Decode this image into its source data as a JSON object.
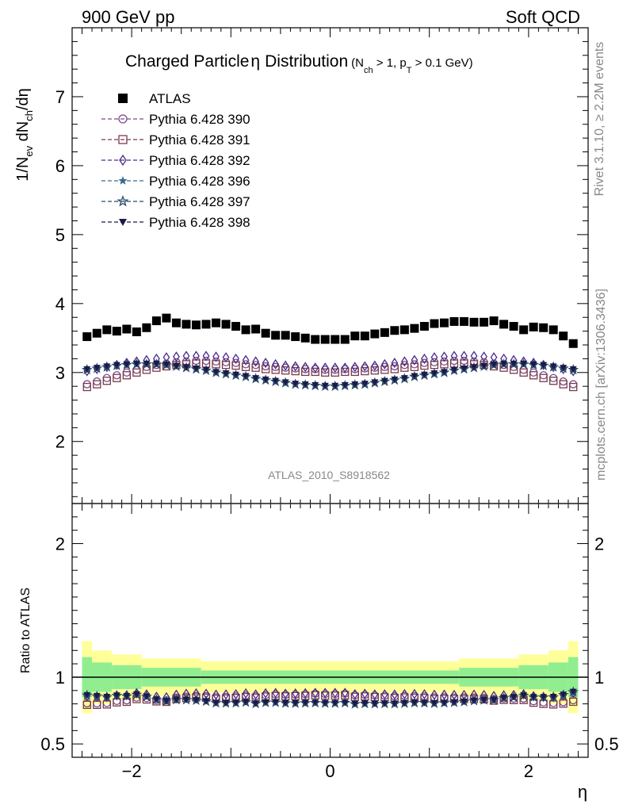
{
  "header": {
    "left": "900 GeV pp",
    "right": "Soft QCD"
  },
  "side_text": {
    "rivet": "Rivet 3.1.10, ≥ 2.2M events",
    "mcplots": "mcplots.cern.ch [arXiv:1306.3436]"
  },
  "chart_data": {
    "type": "scatter",
    "title": {
      "main": "Charged Particle",
      "eta": "η",
      "tail": "Distribution",
      "cuts_prefix": "(N",
      "cuts_sub1": "ch",
      "cuts_mid": " > 1, p",
      "cuts_sub2": "T",
      "cuts_end": " > 0.1 GeV)"
    },
    "analysis_label": "ATLAS_2010_S8918562",
    "xlabel": "η",
    "ylabel": {
      "p1": "1/N",
      "s1": "ev",
      "p2": " dN",
      "s2": "ch",
      "p3": "/dη"
    },
    "ratio_ylabel": "Ratio to ATLAS",
    "xlim": [
      -2.6,
      2.6
    ],
    "ylim": [
      1.1,
      8.0
    ],
    "ratio_ylim": [
      0.4,
      2.3
    ],
    "x_ticks": [
      {
        "value": -2,
        "label": "−2"
      },
      {
        "value": 0,
        "label": "0"
      },
      {
        "value": 2,
        "label": "2"
      }
    ],
    "y_ticks": [
      {
        "value": 2,
        "label": "2"
      },
      {
        "value": 3,
        "label": "3"
      },
      {
        "value": 4,
        "label": "4"
      },
      {
        "value": 5,
        "label": "5"
      },
      {
        "value": 6,
        "label": "6"
      },
      {
        "value": 7,
        "label": "7"
      }
    ],
    "ratio_ticks": [
      {
        "value": 0.5,
        "label": "0.5"
      },
      {
        "value": 1,
        "label": "1"
      },
      {
        "value": 2,
        "label": "2"
      }
    ],
    "x": [
      -2.45,
      -2.35,
      -2.25,
      -2.15,
      -2.05,
      -1.95,
      -1.85,
      -1.75,
      -1.65,
      -1.55,
      -1.45,
      -1.35,
      -1.25,
      -1.15,
      -1.05,
      -0.95,
      -0.85,
      -0.75,
      -0.65,
      -0.55,
      -0.45,
      -0.35,
      -0.25,
      -0.15,
      -0.05,
      0.05,
      0.15,
      0.25,
      0.35,
      0.45,
      0.55,
      0.65,
      0.75,
      0.85,
      0.95,
      1.05,
      1.15,
      1.25,
      1.35,
      1.45,
      1.55,
      1.65,
      1.75,
      1.85,
      1.95,
      2.05,
      2.15,
      2.25,
      2.35,
      2.45
    ],
    "band_edges": [
      -2.5,
      -2.4,
      -2.2,
      -1.9,
      -1.3,
      1.3,
      1.9,
      2.2,
      2.4,
      2.5
    ],
    "band_inner": [
      0.15,
      0.11,
      0.09,
      0.07,
      0.05,
      0.07,
      0.09,
      0.11,
      0.15
    ],
    "band_outer": [
      0.27,
      0.2,
      0.17,
      0.14,
      0.12,
      0.14,
      0.17,
      0.2,
      0.27
    ],
    "series": [
      {
        "name": "ATLAS",
        "marker": "square-filled",
        "color": "#000000",
        "values": [
          3.52,
          3.57,
          3.62,
          3.6,
          3.63,
          3.59,
          3.65,
          3.75,
          3.79,
          3.72,
          3.7,
          3.69,
          3.7,
          3.72,
          3.7,
          3.67,
          3.62,
          3.63,
          3.57,
          3.54,
          3.54,
          3.52,
          3.5,
          3.48,
          3.48,
          3.48,
          3.48,
          3.53,
          3.53,
          3.56,
          3.58,
          3.61,
          3.62,
          3.64,
          3.67,
          3.71,
          3.72,
          3.74,
          3.74,
          3.73,
          3.73,
          3.75,
          3.7,
          3.67,
          3.62,
          3.66,
          3.65,
          3.62,
          3.53,
          3.42
        ]
      },
      {
        "name": "Pythia 6.428 390",
        "marker": "circle-open",
        "color": "#7a4a8a",
        "values": [
          2.83,
          2.87,
          2.92,
          2.96,
          3.0,
          3.04,
          3.08,
          3.11,
          3.13,
          3.15,
          3.16,
          3.17,
          3.17,
          3.16,
          3.15,
          3.14,
          3.12,
          3.11,
          3.09,
          3.08,
          3.07,
          3.06,
          3.05,
          3.05,
          3.04,
          3.04,
          3.05,
          3.05,
          3.06,
          3.07,
          3.08,
          3.09,
          3.11,
          3.12,
          3.14,
          3.15,
          3.16,
          3.17,
          3.17,
          3.16,
          3.15,
          3.13,
          3.11,
          3.08,
          3.04,
          3.0,
          2.96,
          2.92,
          2.87,
          2.83
        ]
      },
      {
        "name": "Pythia 6.428 391",
        "marker": "square-open",
        "color": "#7a3a4a",
        "values": [
          2.79,
          2.83,
          2.88,
          2.92,
          2.96,
          3.0,
          3.04,
          3.07,
          3.09,
          3.11,
          3.12,
          3.13,
          3.13,
          3.12,
          3.11,
          3.1,
          3.08,
          3.07,
          3.05,
          3.04,
          3.03,
          3.02,
          3.01,
          3.01,
          3.0,
          3.0,
          3.01,
          3.01,
          3.02,
          3.03,
          3.04,
          3.05,
          3.07,
          3.08,
          3.1,
          3.11,
          3.12,
          3.13,
          3.13,
          3.12,
          3.11,
          3.09,
          3.07,
          3.04,
          3.0,
          2.96,
          2.92,
          2.88,
          2.83,
          2.79
        ]
      },
      {
        "name": "Pythia 6.428 392",
        "marker": "diamond-open",
        "color": "#4a2a8a",
        "values": [
          3.02,
          3.05,
          3.08,
          3.11,
          3.14,
          3.16,
          3.18,
          3.2,
          3.22,
          3.23,
          3.24,
          3.24,
          3.24,
          3.23,
          3.22,
          3.2,
          3.18,
          3.16,
          3.14,
          3.12,
          3.1,
          3.09,
          3.08,
          3.07,
          3.07,
          3.07,
          3.07,
          3.08,
          3.09,
          3.1,
          3.12,
          3.14,
          3.16,
          3.18,
          3.2,
          3.22,
          3.23,
          3.24,
          3.24,
          3.24,
          3.23,
          3.22,
          3.2,
          3.18,
          3.16,
          3.14,
          3.11,
          3.08,
          3.05,
          3.02
        ]
      },
      {
        "name": "Pythia 6.428 396",
        "marker": "star-filled",
        "color": "#3a6a8a",
        "values": [
          3.04,
          3.06,
          3.08,
          3.1,
          3.11,
          3.12,
          3.12,
          3.12,
          3.11,
          3.09,
          3.07,
          3.05,
          3.03,
          3.0,
          2.98,
          2.96,
          2.94,
          2.91,
          2.89,
          2.87,
          2.85,
          2.83,
          2.82,
          2.81,
          2.8,
          2.8,
          2.81,
          2.82,
          2.83,
          2.85,
          2.87,
          2.89,
          2.91,
          2.94,
          2.96,
          2.98,
          3.0,
          3.03,
          3.05,
          3.07,
          3.09,
          3.11,
          3.12,
          3.12,
          3.12,
          3.11,
          3.1,
          3.08,
          3.06,
          3.04
        ]
      },
      {
        "name": "Pythia 6.428 397",
        "marker": "star-open",
        "color": "#2a4a6a",
        "values": [
          3.04,
          3.06,
          3.08,
          3.1,
          3.11,
          3.12,
          3.12,
          3.12,
          3.11,
          3.09,
          3.07,
          3.05,
          3.03,
          3.0,
          2.98,
          2.96,
          2.94,
          2.91,
          2.89,
          2.87,
          2.85,
          2.83,
          2.82,
          2.81,
          2.8,
          2.8,
          2.81,
          2.82,
          2.83,
          2.85,
          2.87,
          2.89,
          2.91,
          2.94,
          2.96,
          2.98,
          3.0,
          3.03,
          3.05,
          3.07,
          3.09,
          3.11,
          3.12,
          3.12,
          3.12,
          3.11,
          3.1,
          3.08,
          3.06,
          3.04
        ]
      },
      {
        "name": "Pythia 6.428 398",
        "marker": "triangle-down-filled",
        "color": "#1a1a4a",
        "values": [
          3.05,
          3.07,
          3.09,
          3.11,
          3.12,
          3.13,
          3.13,
          3.13,
          3.12,
          3.1,
          3.08,
          3.06,
          3.04,
          3.01,
          2.99,
          2.97,
          2.95,
          2.92,
          2.9,
          2.88,
          2.86,
          2.84,
          2.83,
          2.82,
          2.81,
          2.81,
          2.82,
          2.83,
          2.84,
          2.86,
          2.88,
          2.9,
          2.92,
          2.95,
          2.97,
          2.99,
          3.01,
          3.04,
          3.06,
          3.08,
          3.1,
          3.12,
          3.13,
          3.13,
          3.13,
          3.12,
          3.11,
          3.09,
          3.07,
          3.05
        ]
      }
    ],
    "colors": {
      "band_inner": "#90ee90",
      "band_outer": "#ffff99"
    }
  }
}
